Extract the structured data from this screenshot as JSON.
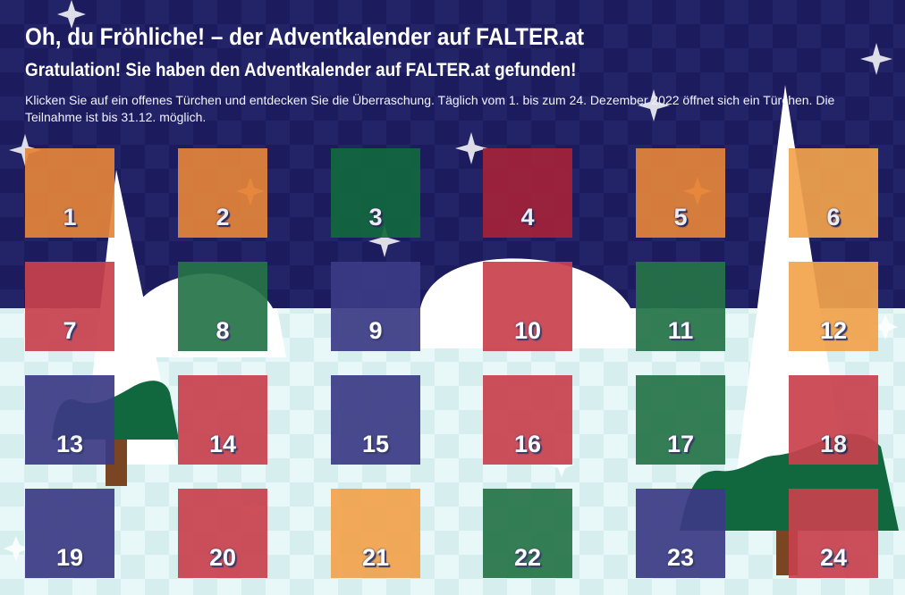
{
  "header": {
    "title": "Oh, du Fröhliche! – der Adventkalender auf FALTER.at",
    "subtitle": "Gratulation! Sie haben den Adventkalender auf FALTER.at gefunden!",
    "intro": "Klicken Sie auf ein offenes Türchen und entdecken Sie die Überraschung. Täglich vom 1. bis zum 24. Dezember 2022 öffnet sich ein Türchen. Die Teilnahme ist bis 31.12. möglich."
  },
  "colors": {
    "sky": "#1b1b5e",
    "snow": "#e6f7f7",
    "orange": "#e5853a",
    "light_orange": "#f2a34c",
    "red": "#c8414d",
    "dark_red": "#a4223a",
    "green": "#267448",
    "dark_green": "#12683e",
    "navy": "#3b3a85"
  },
  "doors": [
    {
      "label": "1",
      "color": "#e5853a"
    },
    {
      "label": "2",
      "color": "#e5853a"
    },
    {
      "label": "3",
      "color": "#12683e"
    },
    {
      "label": "4",
      "color": "#a4223a"
    },
    {
      "label": "5",
      "color": "#e5853a"
    },
    {
      "label": "6",
      "color": "#f2a34c"
    },
    {
      "label": "7",
      "color": "#c8414d"
    },
    {
      "label": "8",
      "color": "#267448"
    },
    {
      "label": "9",
      "color": "#3b3a85"
    },
    {
      "label": "10",
      "color": "#c8414d"
    },
    {
      "label": "11",
      "color": "#267448"
    },
    {
      "label": "12",
      "color": "#f2a34c"
    },
    {
      "label": "13",
      "color": "#3b3a85"
    },
    {
      "label": "14",
      "color": "#c8414d"
    },
    {
      "label": "15",
      "color": "#3b3a85"
    },
    {
      "label": "16",
      "color": "#c8414d"
    },
    {
      "label": "17",
      "color": "#267448"
    },
    {
      "label": "18",
      "color": "#c8414d"
    },
    {
      "label": "19",
      "color": "#3b3a85"
    },
    {
      "label": "20",
      "color": "#c8414d"
    },
    {
      "label": "21",
      "color": "#f2a34c"
    },
    {
      "label": "22",
      "color": "#267448"
    },
    {
      "label": "23",
      "color": "#3b3a85"
    },
    {
      "label": "24",
      "color": "#c8414d"
    }
  ]
}
